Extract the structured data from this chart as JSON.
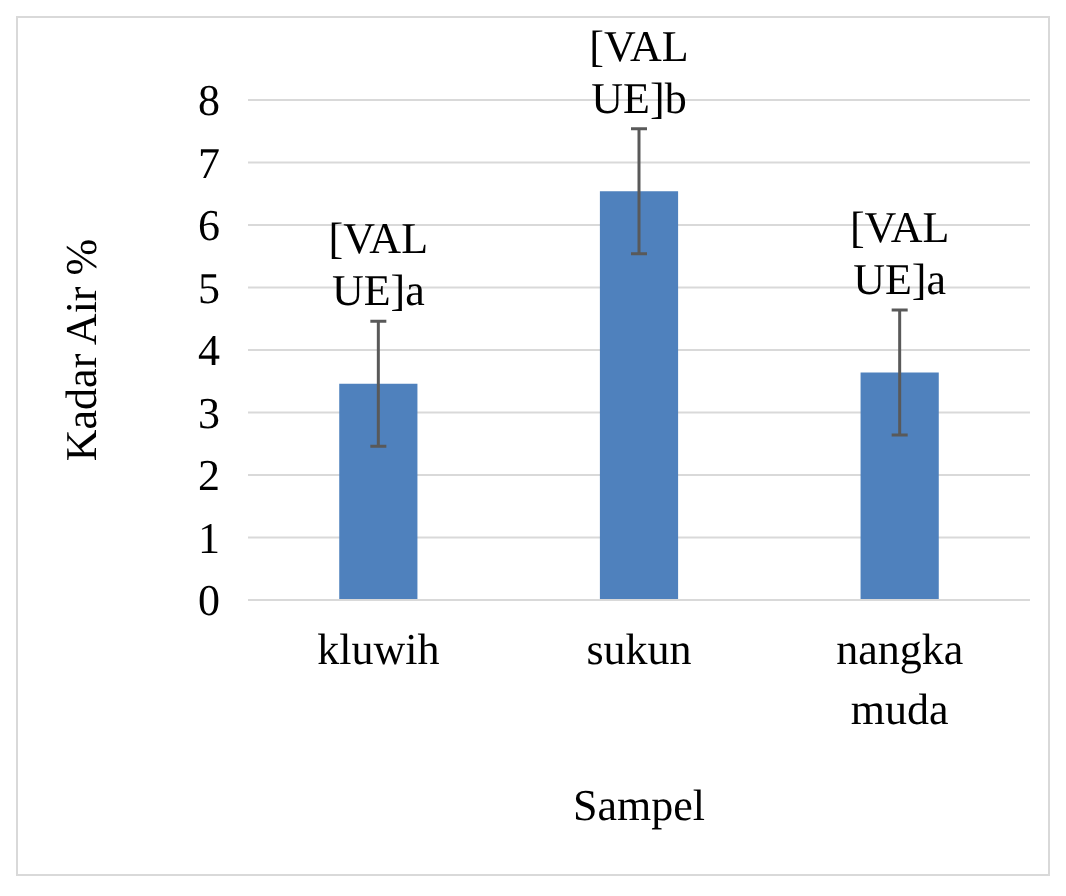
{
  "chart_data": {
    "type": "bar",
    "xlabel": "Sampel",
    "ylabel": "Kadar Air %",
    "categories": [
      "kluwih",
      "sukun",
      "nangka muda"
    ],
    "values": [
      3.46,
      6.54,
      3.64
    ],
    "color": "#4f81bd",
    "errors": [
      1,
      1,
      1
    ],
    "value_labels": [
      "[VALUE]a",
      "[VALUE]b",
      "[VALUE]a"
    ],
    "ylim": [
      0,
      8
    ],
    "yticks": [
      0,
      1,
      2,
      3,
      4,
      5,
      6,
      7,
      8
    ],
    "grid": "y"
  }
}
